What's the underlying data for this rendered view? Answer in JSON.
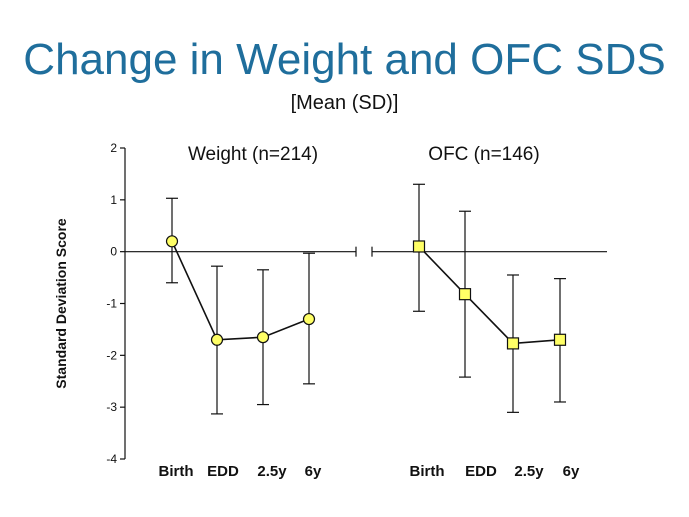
{
  "title": "Change in Weight and OFC SDS",
  "subtitle": "[Mean (SD)]",
  "colors": {
    "title": "#1f6e9c",
    "marker_fill": "#ffff66",
    "line": "#111111"
  },
  "chart_data": {
    "type": "line",
    "ylabel": "Standard Deviation Score",
    "ylim": [
      -4,
      2
    ],
    "yticks": [
      2,
      1,
      0,
      -1,
      -2,
      -3,
      -4
    ],
    "categories": [
      "Birth",
      "EDD",
      "2.5y",
      "6y"
    ],
    "grid": false,
    "panels": [
      {
        "title": "Weight (n=214)",
        "marker": "circle",
        "mean": [
          0.2,
          -1.7,
          -1.65,
          -1.3
        ],
        "upper": [
          1.03,
          -0.28,
          -0.35,
          -0.03
        ],
        "lower": [
          -0.6,
          -3.13,
          -2.95,
          -2.55
        ]
      },
      {
        "title": "OFC (n=146)",
        "marker": "square",
        "mean": [
          0.1,
          -0.82,
          -1.77,
          -1.7
        ],
        "upper": [
          1.3,
          0.78,
          -0.45,
          -0.52
        ],
        "lower": [
          -1.15,
          -2.42,
          -3.1,
          -2.9
        ]
      }
    ]
  }
}
